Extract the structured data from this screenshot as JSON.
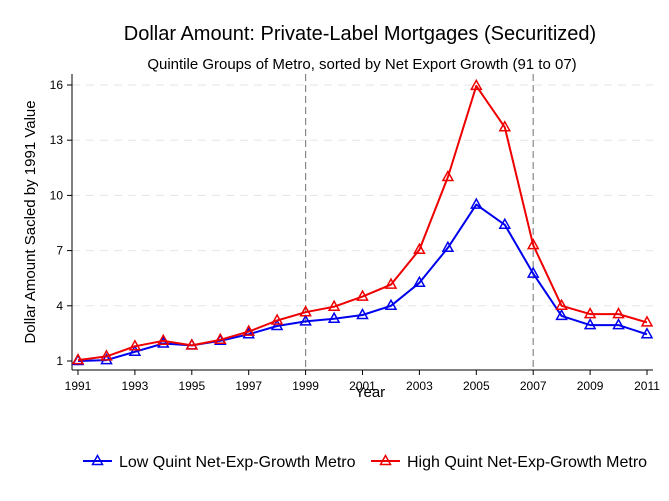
{
  "chart_data": {
    "type": "line",
    "title": "Dollar Amount: Private-Label Mortgages (Securitized)",
    "subtitle": "Quintile Groups of Metro, sorted by Net Export Growth (91 to 07)",
    "xlabel": "Year",
    "ylabel": "Dollar Amount Sacled by 1991 Value",
    "x": [
      1991,
      1992,
      1993,
      1994,
      1995,
      1996,
      1997,
      1998,
      1999,
      2000,
      2001,
      2002,
      2003,
      2004,
      2005,
      2006,
      2007,
      2008,
      2009,
      2010,
      2011
    ],
    "xticks": [
      "1991",
      "1993",
      "1995",
      "1997",
      "1999",
      "2001",
      "2003",
      "2005",
      "2007",
      "2009",
      "2011"
    ],
    "yticks": [
      "1",
      "4",
      "7",
      "10",
      "13",
      "16"
    ],
    "xlim": [
      1991,
      2011
    ],
    "ylim": [
      1,
      16
    ],
    "grid": true,
    "reference_lines_x": [
      1999,
      2007
    ],
    "legend_position": "bottom",
    "series": [
      {
        "name": "Low Quint Net-Exp-Growth Metro",
        "color": "#0000ee",
        "marker": "triangle",
        "values": [
          1.0,
          1.05,
          1.5,
          1.95,
          1.85,
          2.1,
          2.45,
          2.9,
          3.15,
          3.3,
          3.5,
          4.0,
          5.25,
          7.15,
          9.5,
          8.4,
          5.75,
          3.45,
          2.95,
          2.95,
          2.45
        ]
      },
      {
        "name": "High Quint Net-Exp-Growth Metro",
        "color": "#ee0000",
        "marker": "triangle",
        "values": [
          1.05,
          1.25,
          1.8,
          2.1,
          1.85,
          2.15,
          2.6,
          3.2,
          3.65,
          3.95,
          4.5,
          5.15,
          7.05,
          11.0,
          15.95,
          13.7,
          7.3,
          4.0,
          3.55,
          3.55,
          3.1
        ]
      }
    ]
  }
}
